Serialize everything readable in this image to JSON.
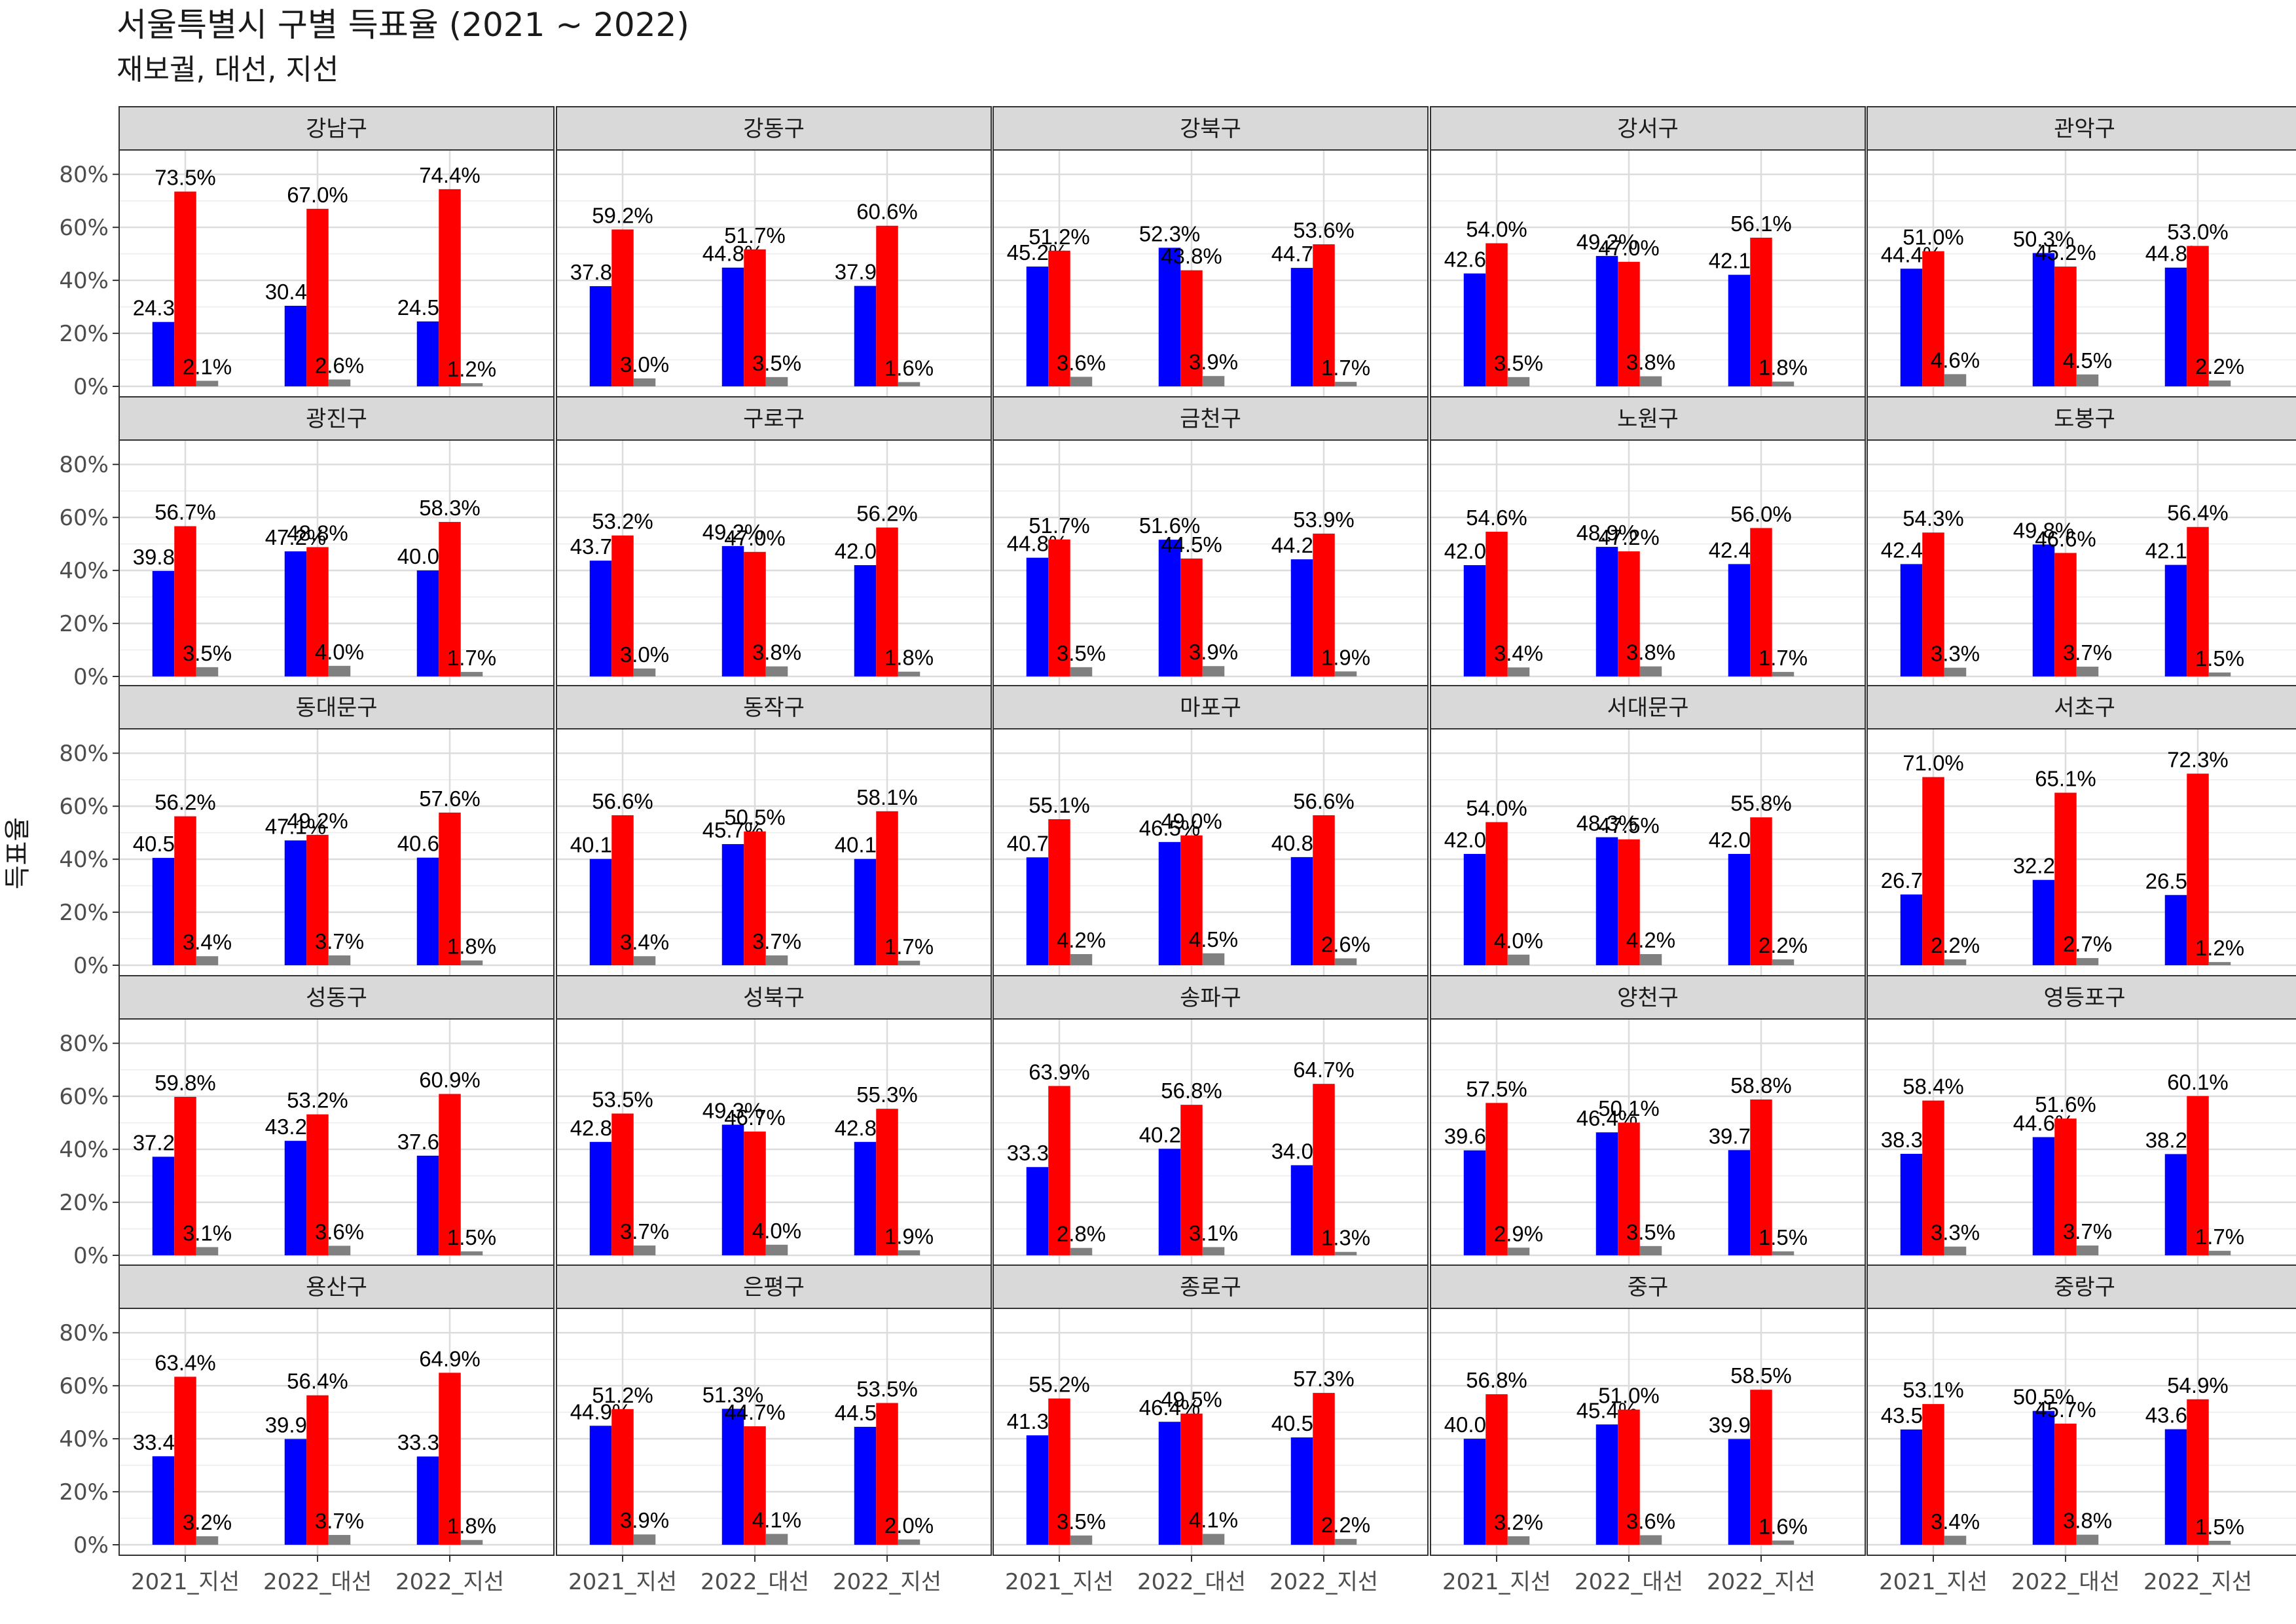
{
  "chart_data": {
    "type": "bar",
    "title": "서울특별시 구별 득표율 (2021 ~ 2022)",
    "subtitle": "재보궐, 대선, 지선",
    "ylabel": "득표율",
    "xlabel": "",
    "ylim": [
      0,
      0.85
    ],
    "yticks": [
      "0%",
      "20%",
      "40%",
      "60%",
      "80%"
    ],
    "categories": [
      "2021_지선",
      "2022_대선",
      "2022_지선"
    ],
    "grid": true,
    "colors": {
      "blue": "#0000ff",
      "red": "#ff0000",
      "other": "#808080"
    },
    "facets": [
      {
        "name": "강남구",
        "values": [
          [
            24.3,
            73.5,
            2.1
          ],
          [
            30.4,
            67.0,
            2.6
          ],
          [
            24.5,
            74.4,
            1.2
          ]
        ]
      },
      {
        "name": "강동구",
        "values": [
          [
            37.8,
            59.2,
            3.0
          ],
          [
            44.8,
            51.7,
            3.5
          ],
          [
            37.9,
            60.6,
            1.6
          ]
        ]
      },
      {
        "name": "강북구",
        "values": [
          [
            45.2,
            51.2,
            3.6
          ],
          [
            52.3,
            43.8,
            3.9
          ],
          [
            44.7,
            53.6,
            1.7
          ]
        ]
      },
      {
        "name": "강서구",
        "values": [
          [
            42.6,
            54.0,
            3.5
          ],
          [
            49.2,
            47.0,
            3.8
          ],
          [
            42.1,
            56.1,
            1.8
          ]
        ]
      },
      {
        "name": "관악구",
        "values": [
          [
            44.4,
            51.0,
            4.6
          ],
          [
            50.3,
            45.2,
            4.5
          ],
          [
            44.8,
            53.0,
            2.2
          ]
        ]
      },
      {
        "name": "광진구",
        "values": [
          [
            39.8,
            56.7,
            3.5
          ],
          [
            47.2,
            48.8,
            4.0
          ],
          [
            40.0,
            58.3,
            1.7
          ]
        ]
      },
      {
        "name": "구로구",
        "values": [
          [
            43.7,
            53.2,
            3.0
          ],
          [
            49.2,
            47.0,
            3.8
          ],
          [
            42.0,
            56.2,
            1.8
          ]
        ]
      },
      {
        "name": "금천구",
        "values": [
          [
            44.8,
            51.7,
            3.5
          ],
          [
            51.6,
            44.5,
            3.9
          ],
          [
            44.2,
            53.9,
            1.9
          ]
        ]
      },
      {
        "name": "노원구",
        "values": [
          [
            42.0,
            54.6,
            3.4
          ],
          [
            48.9,
            47.2,
            3.8
          ],
          [
            42.4,
            56.0,
            1.7
          ]
        ]
      },
      {
        "name": "도봉구",
        "values": [
          [
            42.4,
            54.3,
            3.3
          ],
          [
            49.8,
            46.6,
            3.7
          ],
          [
            42.1,
            56.4,
            1.5
          ]
        ]
      },
      {
        "name": "동대문구",
        "values": [
          [
            40.5,
            56.2,
            3.4
          ],
          [
            47.1,
            49.2,
            3.7
          ],
          [
            40.6,
            57.6,
            1.8
          ]
        ]
      },
      {
        "name": "동작구",
        "values": [
          [
            40.1,
            56.6,
            3.4
          ],
          [
            45.7,
            50.5,
            3.7
          ],
          [
            40.1,
            58.1,
            1.7
          ]
        ]
      },
      {
        "name": "마포구",
        "values": [
          [
            40.7,
            55.1,
            4.2
          ],
          [
            46.5,
            49.0,
            4.5
          ],
          [
            40.8,
            56.6,
            2.6
          ]
        ]
      },
      {
        "name": "서대문구",
        "values": [
          [
            42.0,
            54.0,
            4.0
          ],
          [
            48.3,
            47.5,
            4.2
          ],
          [
            42.0,
            55.8,
            2.2
          ]
        ]
      },
      {
        "name": "서초구",
        "values": [
          [
            26.7,
            71.0,
            2.2
          ],
          [
            32.2,
            65.1,
            2.7
          ],
          [
            26.5,
            72.3,
            1.2
          ]
        ]
      },
      {
        "name": "성동구",
        "values": [
          [
            37.2,
            59.8,
            3.1
          ],
          [
            43.2,
            53.2,
            3.6
          ],
          [
            37.6,
            60.9,
            1.5
          ]
        ]
      },
      {
        "name": "성북구",
        "values": [
          [
            42.8,
            53.5,
            3.7
          ],
          [
            49.3,
            46.7,
            4.0
          ],
          [
            42.8,
            55.3,
            1.9
          ]
        ]
      },
      {
        "name": "송파구",
        "values": [
          [
            33.3,
            63.9,
            2.8
          ],
          [
            40.2,
            56.8,
            3.1
          ],
          [
            34.0,
            64.7,
            1.3
          ]
        ]
      },
      {
        "name": "양천구",
        "values": [
          [
            39.6,
            57.5,
            2.9
          ],
          [
            46.4,
            50.1,
            3.5
          ],
          [
            39.7,
            58.8,
            1.5
          ]
        ]
      },
      {
        "name": "영등포구",
        "values": [
          [
            38.3,
            58.4,
            3.3
          ],
          [
            44.6,
            51.6,
            3.7
          ],
          [
            38.2,
            60.1,
            1.7
          ]
        ]
      },
      {
        "name": "용산구",
        "values": [
          [
            33.4,
            63.4,
            3.2
          ],
          [
            39.9,
            56.4,
            3.7
          ],
          [
            33.3,
            64.9,
            1.8
          ]
        ]
      },
      {
        "name": "은평구",
        "values": [
          [
            44.9,
            51.2,
            3.9
          ],
          [
            51.3,
            44.7,
            4.1
          ],
          [
            44.5,
            53.5,
            2.0
          ]
        ]
      },
      {
        "name": "종로구",
        "values": [
          [
            41.3,
            55.2,
            3.5
          ],
          [
            46.4,
            49.5,
            4.1
          ],
          [
            40.5,
            57.3,
            2.2
          ]
        ]
      },
      {
        "name": "중구",
        "values": [
          [
            40.0,
            56.8,
            3.2
          ],
          [
            45.4,
            51.0,
            3.6
          ],
          [
            39.9,
            58.5,
            1.6
          ]
        ]
      },
      {
        "name": "중랑구",
        "values": [
          [
            43.5,
            53.1,
            3.4
          ],
          [
            50.5,
            45.7,
            3.8
          ],
          [
            43.6,
            54.9,
            1.5
          ]
        ]
      }
    ]
  }
}
